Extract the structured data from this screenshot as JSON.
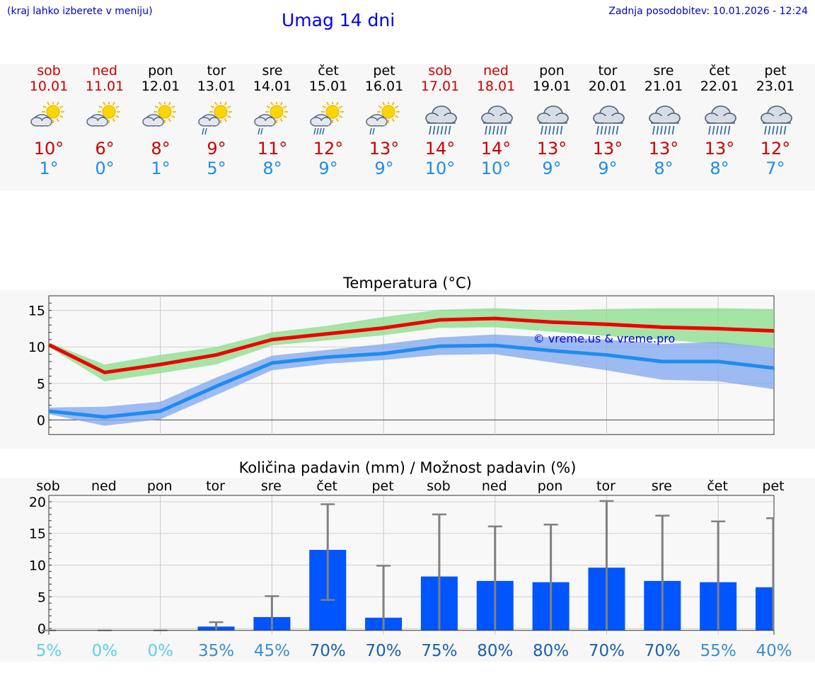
{
  "header": {
    "menu_hint": "(kraj lahko izberete v meniju)",
    "title": "Umag 14 dni",
    "updated": "Zadnja posodobitev: 10.01.2026 - 12:24"
  },
  "days": [
    {
      "name": "sob",
      "date": "10.01",
      "weekend": true,
      "icon": "sun-cloud-icon",
      "max": "10°",
      "min": "1°"
    },
    {
      "name": "ned",
      "date": "11.01",
      "weekend": true,
      "icon": "sun-cloud-icon",
      "max": "6°",
      "min": "0°"
    },
    {
      "name": "pon",
      "date": "12.01",
      "weekend": false,
      "icon": "sun-cloud-icon",
      "max": "8°",
      "min": "1°"
    },
    {
      "name": "tor",
      "date": "13.01",
      "weekend": false,
      "icon": "sun-cloud-light-rain-icon",
      "max": "9°",
      "min": "5°"
    },
    {
      "name": "sre",
      "date": "14.01",
      "weekend": false,
      "icon": "sun-cloud-light-rain-icon",
      "max": "11°",
      "min": "8°"
    },
    {
      "name": "čet",
      "date": "15.01",
      "weekend": false,
      "icon": "sun-cloud-rain-icon",
      "max": "12°",
      "min": "9°"
    },
    {
      "name": "pet",
      "date": "16.01",
      "weekend": false,
      "icon": "sun-cloud-light-rain-icon",
      "max": "13°",
      "min": "9°"
    },
    {
      "name": "sob",
      "date": "17.01",
      "weekend": true,
      "icon": "cloud-rain-icon",
      "max": "14°",
      "min": "10°"
    },
    {
      "name": "ned",
      "date": "18.01",
      "weekend": true,
      "icon": "cloud-rain-icon",
      "max": "14°",
      "min": "10°"
    },
    {
      "name": "pon",
      "date": "19.01",
      "weekend": false,
      "icon": "cloud-rain-icon",
      "max": "13°",
      "min": "9°"
    },
    {
      "name": "tor",
      "date": "20.01",
      "weekend": false,
      "icon": "cloud-rain-icon",
      "max": "13°",
      "min": "9°"
    },
    {
      "name": "sre",
      "date": "21.01",
      "weekend": false,
      "icon": "cloud-rain-icon",
      "max": "13°",
      "min": "8°"
    },
    {
      "name": "čet",
      "date": "22.01",
      "weekend": false,
      "icon": "cloud-rain-icon",
      "max": "13°",
      "min": "8°"
    },
    {
      "name": "pet",
      "date": "23.01",
      "weekend": false,
      "icon": "cloud-rain-icon",
      "max": "12°",
      "min": "7°"
    }
  ],
  "chart_data": [
    {
      "type": "line",
      "title": "Temperatura (°C)",
      "watermark": "© vreme.us & vreme.pro",
      "ylim": [
        -2,
        17
      ],
      "yticks": [
        0,
        5,
        10,
        15
      ],
      "x": [
        0,
        1,
        2,
        3,
        4,
        5,
        6,
        7,
        8,
        9,
        10,
        11,
        12,
        13
      ],
      "series": [
        {
          "name": "max",
          "color": "#ee0000",
          "values": [
            10.3,
            6.5,
            7.6,
            8.9,
            11.0,
            11.8,
            12.6,
            13.7,
            13.9,
            13.4,
            13.1,
            12.7,
            12.5,
            12.2
          ],
          "band_low": [
            10.0,
            5.3,
            6.4,
            7.6,
            10.2,
            10.9,
            11.6,
            12.6,
            12.7,
            12.1,
            11.5,
            11.0,
            10.4,
            10.0
          ],
          "band_high": [
            10.6,
            7.6,
            8.9,
            10.0,
            12.0,
            12.9,
            14.1,
            15.1,
            15.3,
            15.0,
            15.2,
            15.3,
            15.3,
            15.2
          ],
          "band_color": "#88dd88"
        },
        {
          "name": "min",
          "color": "#1f8cf0",
          "values": [
            1.2,
            0.4,
            1.2,
            4.6,
            7.8,
            8.6,
            9.1,
            10.1,
            10.2,
            9.5,
            8.9,
            8.0,
            8.0,
            7.1
          ],
          "band_low": [
            0.8,
            -0.8,
            0.1,
            3.4,
            6.8,
            7.7,
            8.2,
            8.9,
            9.0,
            7.9,
            6.8,
            5.5,
            5.3,
            4.2
          ],
          "band_high": [
            1.7,
            1.8,
            2.5,
            5.8,
            8.8,
            9.6,
            10.4,
            11.3,
            11.7,
            11.3,
            11.0,
            10.4,
            10.7,
            9.9
          ],
          "band_color": "#7fa7ee"
        }
      ]
    },
    {
      "type": "bar",
      "title": "Količina padavin (mm) / Možnost padavin (%)",
      "ylim": [
        -1,
        21
      ],
      "yticks": [
        0,
        5,
        10,
        15,
        20
      ],
      "categories": [
        "sob",
        "ned",
        "pon",
        "tor",
        "sre",
        "čet",
        "pet",
        "sob",
        "ned",
        "pon",
        "tor",
        "sre",
        "čet",
        "pet"
      ],
      "values": [
        0,
        0,
        0,
        0.3,
        1.8,
        12.4,
        1.7,
        8.2,
        7.5,
        7.3,
        9.6,
        7.5,
        7.3,
        6.5
      ],
      "error_low": [
        0,
        0,
        0,
        0,
        0,
        4.5,
        0,
        0,
        0,
        0,
        0,
        0,
        0,
        0
      ],
      "error_high": [
        0,
        0,
        0,
        1.0,
        5.1,
        19.6,
        9.9,
        18.0,
        16.1,
        16.4,
        20.1,
        17.8,
        16.9,
        17.4
      ],
      "probability": [
        "5%",
        "0%",
        "0%",
        "35%",
        "45%",
        "70%",
        "70%",
        "75%",
        "80%",
        "80%",
        "70%",
        "70%",
        "55%",
        "40%"
      ],
      "probability_values": [
        5,
        0,
        0,
        35,
        45,
        70,
        70,
        75,
        80,
        80,
        70,
        70,
        55,
        40
      ]
    }
  ],
  "colors": {
    "bar": "#0055ff",
    "error": "#808080",
    "weekend": "#cc0000",
    "title": "#0000ee"
  }
}
